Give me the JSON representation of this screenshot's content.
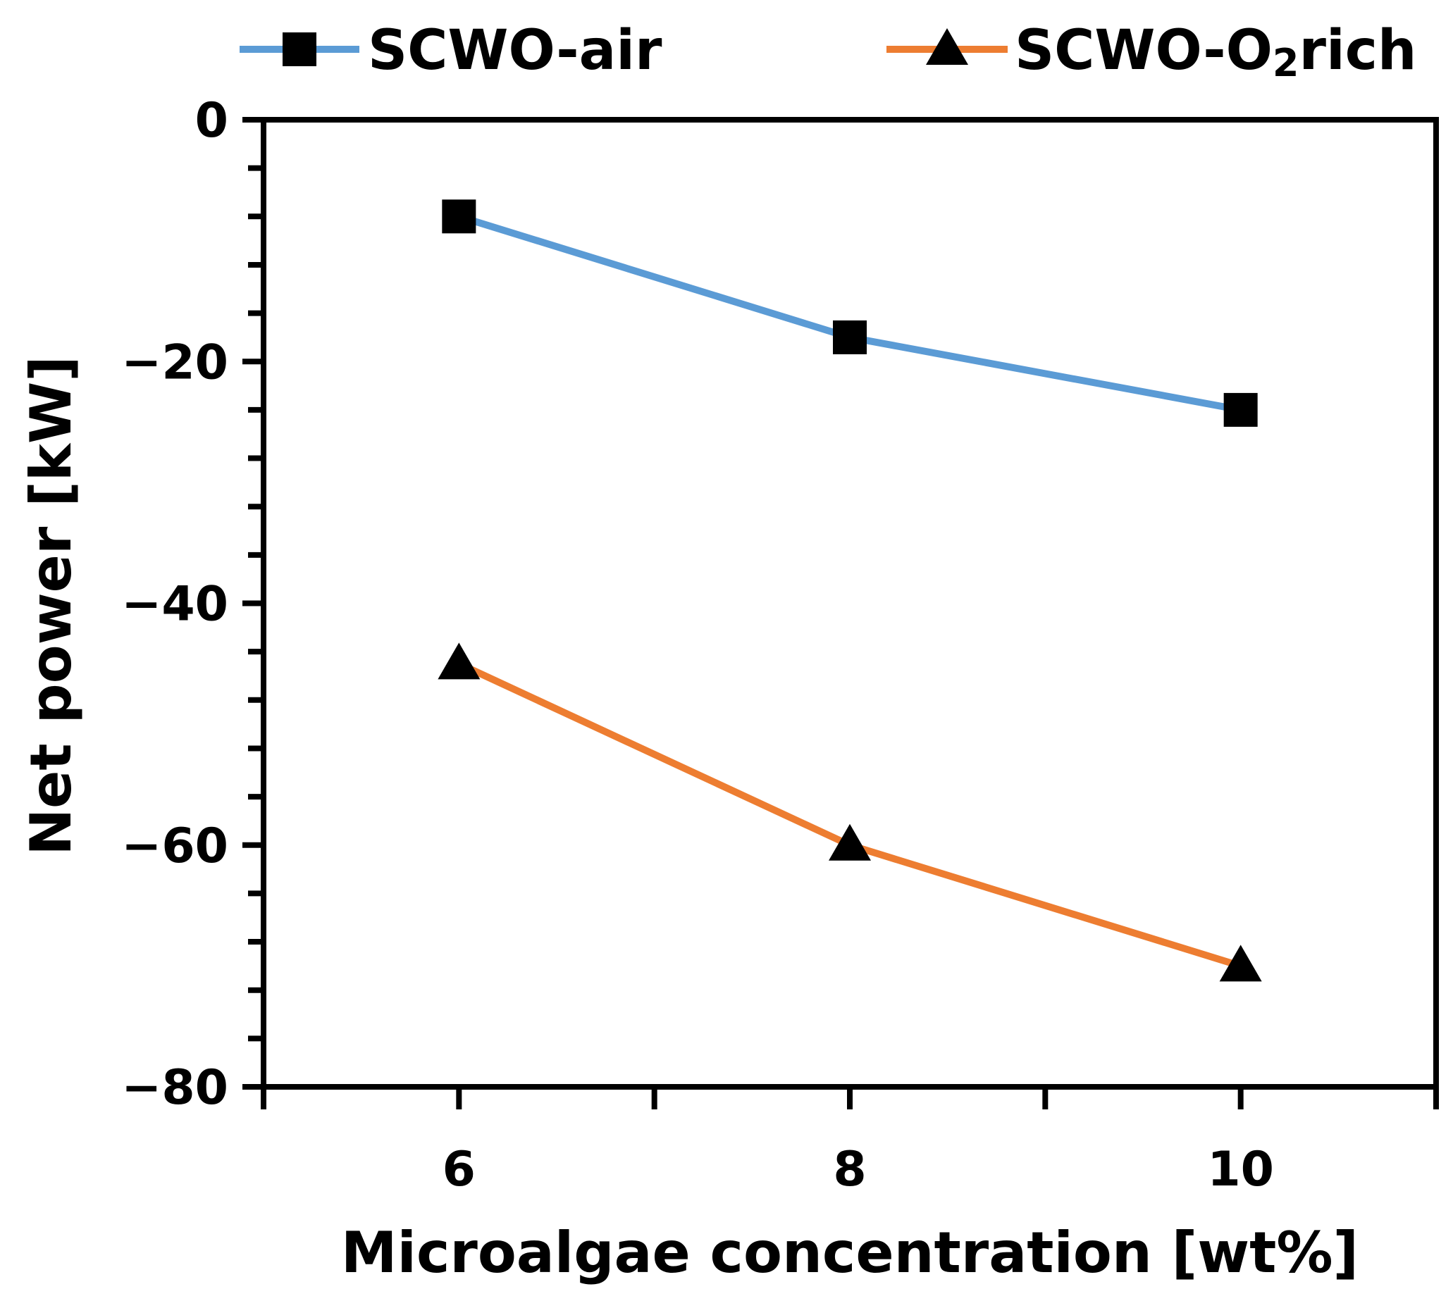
{
  "chart_data": {
    "type": "line",
    "title": "",
    "xlabel": "Microalgae concentration [wt%]",
    "ylabel": "Net power [kW]",
    "xlim": [
      5,
      11
    ],
    "ylim": [
      -80,
      0
    ],
    "x_ticks": [
      6,
      8,
      10
    ],
    "x_minor_ticks": [
      5,
      7,
      9,
      11
    ],
    "x_tick_labels": [
      "6",
      "8",
      "10"
    ],
    "y_ticks": [
      0,
      -20,
      -40,
      -60,
      -80
    ],
    "y_tick_labels": [
      "0",
      "−20",
      "−40",
      "−60",
      "−80"
    ],
    "y_minor_step": 4,
    "grid": false,
    "legend_position": "top",
    "series": [
      {
        "name": "SCWO-air",
        "legend_text": {
          "main": "SCWO-air"
        },
        "color": "#5b9bd5",
        "marker": "square",
        "x": [
          6,
          8,
          10
        ],
        "values": [
          -8,
          -18,
          -24
        ]
      },
      {
        "name": "SCWO-O2rich",
        "legend_text": {
          "prefix": "SCWO-O",
          "sub": "2",
          "suffix": "rich"
        },
        "color": "#ed7d31",
        "marker": "triangle",
        "x": [
          6,
          8,
          10
        ],
        "values": [
          -45,
          -60,
          -70
        ]
      }
    ]
  }
}
